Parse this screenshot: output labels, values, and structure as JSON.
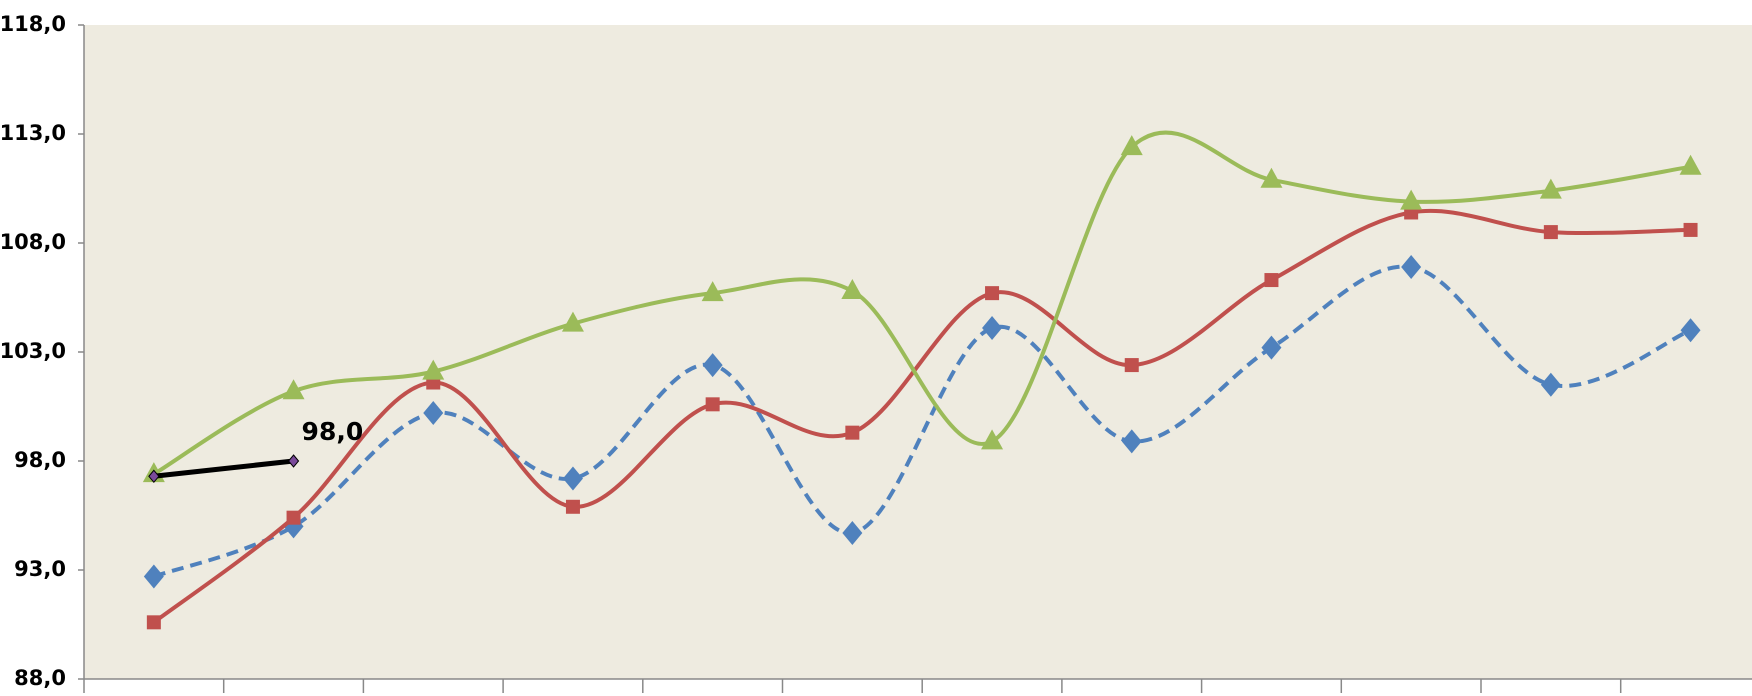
{
  "chart_data": {
    "type": "line",
    "categories": [
      null,
      null,
      null,
      null,
      null,
      null,
      null,
      null,
      null,
      null,
      null,
      null
    ],
    "ylim": [
      88,
      118
    ],
    "yticks": [
      {
        "value": 88,
        "label": "88,0"
      },
      {
        "value": 93,
        "label": "93,0"
      },
      {
        "value": 98,
        "label": "98,0"
      },
      {
        "value": 103,
        "label": "103,0"
      },
      {
        "value": 108,
        "label": "108,0"
      },
      {
        "value": 113,
        "label": "113,0"
      },
      {
        "value": 118,
        "label": "118,0"
      }
    ],
    "grid": false,
    "smooth": true,
    "series": [
      {
        "color": "#4f81bd",
        "marker": "diamond",
        "dash": true,
        "values": [
          92.7,
          95.0,
          100.2,
          97.2,
          102.4,
          94.7,
          104.1,
          98.9,
          103.2,
          106.9,
          101.5,
          104.0
        ]
      },
      {
        "color": "#c0504d",
        "marker": "square",
        "dash": false,
        "values": [
          90.6,
          95.4,
          101.6,
          95.9,
          100.6,
          99.3,
          105.7,
          102.4,
          106.3,
          109.4,
          108.5,
          108.6
        ]
      },
      {
        "color": "#9bbb59",
        "marker": "triangle",
        "dash": false,
        "values": [
          97.4,
          101.2,
          102.1,
          104.3,
          105.7,
          105.8,
          98.9,
          112.4,
          110.9,
          109.9,
          110.4,
          111.5
        ]
      },
      {
        "color": "#000000",
        "marker": "small-diamond",
        "dash": false,
        "values": [
          97.3,
          98.0,
          null,
          null,
          null,
          null,
          null,
          null,
          null,
          null,
          null,
          null
        ],
        "value_labels": [
          null,
          "98,0",
          null,
          null,
          null,
          null,
          null,
          null,
          null,
          null,
          null,
          null
        ]
      }
    ]
  }
}
